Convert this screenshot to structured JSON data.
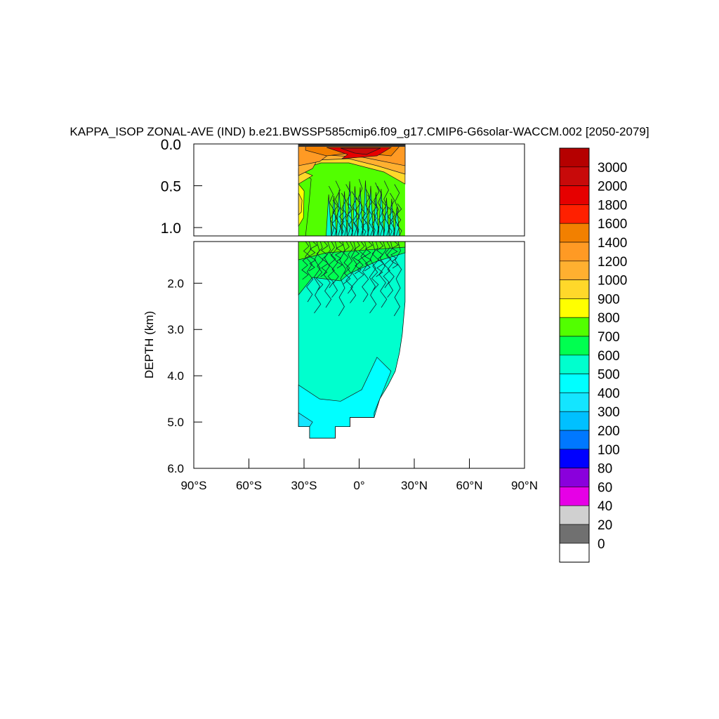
{
  "chart_data": {
    "type": "heatmap",
    "title": "KAPPA_ISOP ZONAL-AVE (IND) b.e21.BWSSP585cmip6.f09_g17.CMIP6-G6solar-WACCM.002 [2050-2079]",
    "ylabel": "DEPTH (km)",
    "xlabel": "",
    "x_ticks": [
      "90°S",
      "60°S",
      "30°S",
      "0°",
      "30°N",
      "60°N",
      "90°N"
    ],
    "xlim": [
      -90,
      90
    ],
    "upper_panel": {
      "ylim": [
        0.0,
        1.1
      ],
      "y_ticks": [
        "0.0",
        "0.5",
        "1.0"
      ]
    },
    "lower_panel": {
      "ylim": [
        1.1,
        6.0
      ],
      "y_ticks": [
        "2.0",
        "3.0",
        "4.0",
        "5.0",
        "6.0"
      ]
    },
    "data_extent": {
      "lat_min": -33,
      "lat_max": 25,
      "max_depth_km": 5.4
    },
    "colorbar": {
      "labels": [
        "3000",
        "2000",
        "1800",
        "1600",
        "1400",
        "1200",
        "1000",
        "900",
        "800",
        "700",
        "600",
        "500",
        "400",
        "300",
        "200",
        "100",
        "80",
        "60",
        "40",
        "20",
        "0"
      ],
      "colors": [
        "#b50000",
        "#c80a0a",
        "#e60000",
        "#ff2000",
        "#f28000",
        "#ff9a24",
        "#ffb030",
        "#ffd82a",
        "#ffff00",
        "#52ff00",
        "#00ff50",
        "#00ffce",
        "#00ffff",
        "#14e5ff",
        "#00c0ff",
        "#0078ff",
        "#0000ff",
        "#8a00dc",
        "#e600e6",
        "#d0d0d0",
        "#707070",
        "#ffffff"
      ]
    },
    "grid": false
  }
}
